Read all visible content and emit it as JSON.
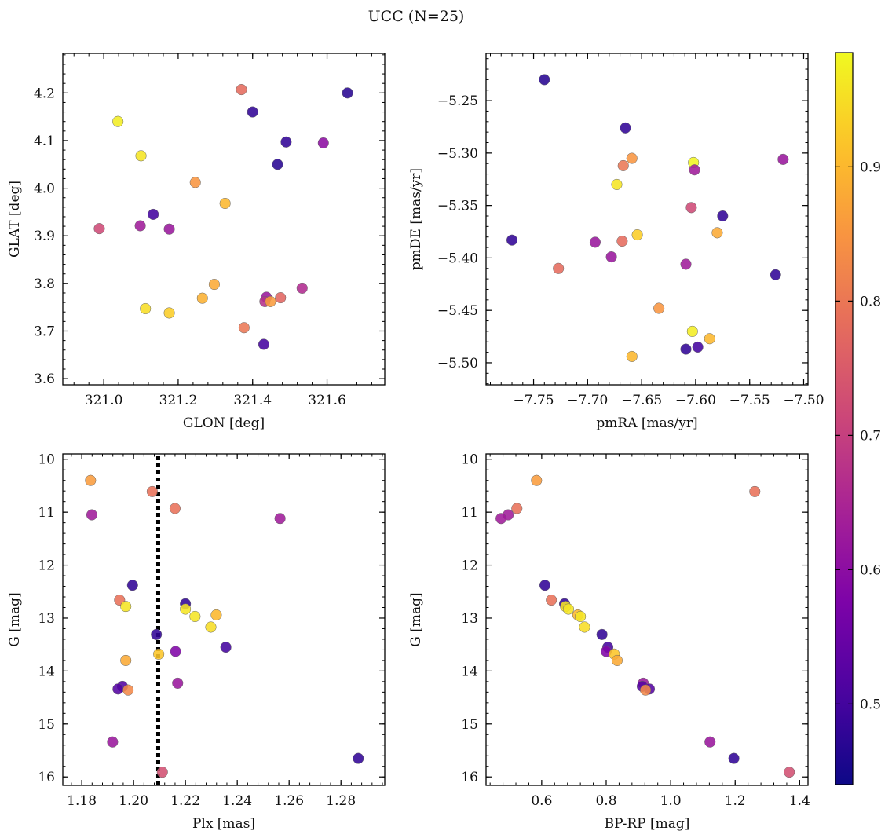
{
  "title": "UCC (N=25)",
  "colorbar": {
    "range": [
      0.44,
      0.985
    ],
    "ticks": [
      0.5,
      0.6,
      0.7,
      0.8,
      0.9
    ],
    "tick_labels": [
      "0.5",
      "0.6",
      "0.7",
      "0.8",
      "0.9"
    ],
    "colormap": "plasma"
  },
  "chart_data": [
    {
      "type": "scatter",
      "xlabel": "GLON [deg]",
      "ylabel": "GLAT [deg]",
      "xlim": [
        320.89,
        321.755
      ],
      "ylim": [
        3.587,
        4.283
      ],
      "xticks": [
        321.0,
        321.2,
        321.4,
        321.6
      ],
      "xtick_labels": [
        "321.0",
        "321.2",
        "321.4",
        "321.6"
      ],
      "yticks": [
        3.6,
        3.7,
        3.8,
        3.9,
        4.0,
        4.1,
        4.2
      ],
      "ytick_labels": [
        "3.6",
        "3.7",
        "3.8",
        "3.9",
        "4.0",
        "4.1",
        "4.2"
      ],
      "points": [
        {
          "x": 321.655,
          "y": 4.2,
          "c": 0.47
        },
        {
          "x": 321.4,
          "y": 4.16,
          "c": 0.48
        },
        {
          "x": 321.37,
          "y": 4.207,
          "c": 0.78
        },
        {
          "x": 321.038,
          "y": 4.14,
          "c": 0.97
        },
        {
          "x": 321.1,
          "y": 4.068,
          "c": 0.96
        },
        {
          "x": 321.49,
          "y": 4.097,
          "c": 0.48
        },
        {
          "x": 321.59,
          "y": 4.095,
          "c": 0.6
        },
        {
          "x": 321.467,
          "y": 4.05,
          "c": 0.47
        },
        {
          "x": 321.246,
          "y": 4.012,
          "c": 0.85
        },
        {
          "x": 321.326,
          "y": 3.968,
          "c": 0.9
        },
        {
          "x": 321.133,
          "y": 3.945,
          "c": 0.5
        },
        {
          "x": 320.988,
          "y": 3.915,
          "c": 0.72
        },
        {
          "x": 321.098,
          "y": 3.921,
          "c": 0.63
        },
        {
          "x": 321.176,
          "y": 3.914,
          "c": 0.62
        },
        {
          "x": 321.297,
          "y": 3.798,
          "c": 0.88
        },
        {
          "x": 321.533,
          "y": 3.79,
          "c": 0.66
        },
        {
          "x": 321.265,
          "y": 3.769,
          "c": 0.89
        },
        {
          "x": 321.437,
          "y": 3.771,
          "c": 0.62
        },
        {
          "x": 321.475,
          "y": 3.77,
          "c": 0.77
        },
        {
          "x": 321.433,
          "y": 3.762,
          "c": 0.67
        },
        {
          "x": 321.448,
          "y": 3.762,
          "c": 0.86
        },
        {
          "x": 321.112,
          "y": 3.747,
          "c": 0.95
        },
        {
          "x": 321.176,
          "y": 3.738,
          "c": 0.93
        },
        {
          "x": 321.377,
          "y": 3.707,
          "c": 0.8
        },
        {
          "x": 321.43,
          "y": 3.672,
          "c": 0.5
        }
      ]
    },
    {
      "type": "scatter",
      "xlabel": "pmRA [mas/yr]",
      "ylabel": "pmDE [mas/yr]",
      "xlim": [
        -7.794,
        -7.496
      ],
      "ylim": [
        -5.521,
        -5.205
      ],
      "xticks": [
        -7.75,
        -7.7,
        -7.65,
        -7.6,
        -7.55,
        -7.5
      ],
      "xtick_labels": [
        "−7.75",
        "−7.70",
        "−7.65",
        "−7.60",
        "−7.55",
        "−7.50"
      ],
      "yticks": [
        -5.5,
        -5.45,
        -5.4,
        -5.35,
        -5.3,
        -5.25
      ],
      "ytick_labels": [
        "−5.50",
        "−5.45",
        "−5.40",
        "−5.35",
        "−5.30",
        "−5.25"
      ],
      "points": [
        {
          "x": -7.74,
          "y": -5.23,
          "c": 0.47
        },
        {
          "x": -7.665,
          "y": -5.276,
          "c": 0.48
        },
        {
          "x": -7.659,
          "y": -5.305,
          "c": 0.85
        },
        {
          "x": -7.667,
          "y": -5.312,
          "c": 0.8
        },
        {
          "x": -7.602,
          "y": -5.309,
          "c": 0.98
        },
        {
          "x": -7.601,
          "y": -5.316,
          "c": 0.63
        },
        {
          "x": -7.519,
          "y": -5.306,
          "c": 0.62
        },
        {
          "x": -7.673,
          "y": -5.33,
          "c": 0.96
        },
        {
          "x": -7.604,
          "y": -5.352,
          "c": 0.72
        },
        {
          "x": -7.575,
          "y": -5.36,
          "c": 0.48
        },
        {
          "x": -7.77,
          "y": -5.383,
          "c": 0.48
        },
        {
          "x": -7.654,
          "y": -5.378,
          "c": 0.93
        },
        {
          "x": -7.58,
          "y": -5.376,
          "c": 0.88
        },
        {
          "x": -7.668,
          "y": -5.384,
          "c": 0.78
        },
        {
          "x": -7.693,
          "y": -5.385,
          "c": 0.62
        },
        {
          "x": -7.678,
          "y": -5.399,
          "c": 0.62
        },
        {
          "x": -7.609,
          "y": -5.406,
          "c": 0.63
        },
        {
          "x": -7.727,
          "y": -5.41,
          "c": 0.78
        },
        {
          "x": -7.526,
          "y": -5.416,
          "c": 0.48
        },
        {
          "x": -7.634,
          "y": -5.448,
          "c": 0.85
        },
        {
          "x": -7.603,
          "y": -5.47,
          "c": 0.97
        },
        {
          "x": -7.587,
          "y": -5.477,
          "c": 0.9
        },
        {
          "x": -7.598,
          "y": -5.485,
          "c": 0.5
        },
        {
          "x": -7.609,
          "y": -5.487,
          "c": 0.48
        },
        {
          "x": -7.659,
          "y": -5.494,
          "c": 0.9
        }
      ]
    },
    {
      "type": "scatter",
      "xlabel": "Plx [mas]",
      "ylabel": "G [mag]",
      "xlim": [
        1.1727,
        1.2969
      ],
      "ylim": [
        16.16,
        9.9
      ],
      "xticks": [
        1.18,
        1.2,
        1.22,
        1.24,
        1.26,
        1.28
      ],
      "xtick_labels": [
        "1.18",
        "1.20",
        "1.22",
        "1.24",
        "1.26",
        "1.28"
      ],
      "yticks": [
        10,
        11,
        12,
        13,
        14,
        15,
        16
      ],
      "ytick_labels": [
        "10",
        "11",
        "12",
        "13",
        "14",
        "15",
        "16"
      ],
      "vline": {
        "x": 1.2095,
        "style": "dotted"
      },
      "points": [
        {
          "x": 1.1834,
          "y": 10.4,
          "c": 0.86
        },
        {
          "x": 1.2072,
          "y": 10.61,
          "c": 0.79
        },
        {
          "x": 1.216,
          "y": 10.93,
          "c": 0.79
        },
        {
          "x": 1.1839,
          "y": 11.05,
          "c": 0.63
        },
        {
          "x": 1.2565,
          "y": 11.12,
          "c": 0.63
        },
        {
          "x": 1.1996,
          "y": 12.38,
          "c": 0.48
        },
        {
          "x": 1.1946,
          "y": 12.66,
          "c": 0.79
        },
        {
          "x": 1.22,
          "y": 12.73,
          "c": 0.48
        },
        {
          "x": 1.197,
          "y": 12.78,
          "c": 0.96
        },
        {
          "x": 1.22,
          "y": 12.83,
          "c": 0.96
        },
        {
          "x": 1.2319,
          "y": 12.94,
          "c": 0.9
        },
        {
          "x": 1.2237,
          "y": 12.97,
          "c": 0.96
        },
        {
          "x": 1.2298,
          "y": 13.17,
          "c": 0.95
        },
        {
          "x": 1.2088,
          "y": 13.31,
          "c": 0.48
        },
        {
          "x": 1.2356,
          "y": 13.55,
          "c": 0.5
        },
        {
          "x": 1.2162,
          "y": 13.63,
          "c": 0.58
        },
        {
          "x": 1.2097,
          "y": 13.68,
          "c": 0.92
        },
        {
          "x": 1.197,
          "y": 13.8,
          "c": 0.88
        },
        {
          "x": 1.217,
          "y": 14.23,
          "c": 0.62
        },
        {
          "x": 1.1957,
          "y": 14.29,
          "c": 0.52
        },
        {
          "x": 1.194,
          "y": 14.34,
          "c": 0.52
        },
        {
          "x": 1.1979,
          "y": 14.36,
          "c": 0.83
        },
        {
          "x": 1.1919,
          "y": 15.34,
          "c": 0.62
        },
        {
          "x": 1.2111,
          "y": 15.91,
          "c": 0.73
        },
        {
          "x": 1.2867,
          "y": 15.65,
          "c": 0.48
        }
      ]
    },
    {
      "type": "scatter",
      "xlabel": "BP-RP [mag]",
      "ylabel": "G [mag]",
      "xlim": [
        0.4274,
        1.4259
      ],
      "ylim": [
        16.16,
        9.9
      ],
      "xticks": [
        0.6,
        0.8,
        1.0,
        1.2,
        1.4
      ],
      "xtick_labels": [
        "0.6",
        "0.8",
        "1.0",
        "1.2",
        "1.4"
      ],
      "yticks": [
        10,
        11,
        12,
        13,
        14,
        15,
        16
      ],
      "ytick_labels": [
        "10",
        "11",
        "12",
        "13",
        "14",
        "15",
        "16"
      ],
      "points": [
        {
          "x": 0.584,
          "y": 10.4,
          "c": 0.86
        },
        {
          "x": 1.261,
          "y": 10.61,
          "c": 0.79
        },
        {
          "x": 0.523,
          "y": 10.93,
          "c": 0.79
        },
        {
          "x": 0.496,
          "y": 11.05,
          "c": 0.63
        },
        {
          "x": 0.474,
          "y": 11.12,
          "c": 0.63
        },
        {
          "x": 0.61,
          "y": 12.38,
          "c": 0.48
        },
        {
          "x": 0.63,
          "y": 12.66,
          "c": 0.79
        },
        {
          "x": 0.671,
          "y": 12.73,
          "c": 0.48
        },
        {
          "x": 0.674,
          "y": 12.78,
          "c": 0.96
        },
        {
          "x": 0.683,
          "y": 12.83,
          "c": 0.96
        },
        {
          "x": 0.712,
          "y": 12.94,
          "c": 0.9
        },
        {
          "x": 0.72,
          "y": 12.97,
          "c": 0.96
        },
        {
          "x": 0.733,
          "y": 13.17,
          "c": 0.95
        },
        {
          "x": 0.787,
          "y": 13.31,
          "c": 0.48
        },
        {
          "x": 0.805,
          "y": 13.55,
          "c": 0.5
        },
        {
          "x": 0.8,
          "y": 13.63,
          "c": 0.58
        },
        {
          "x": 0.825,
          "y": 13.68,
          "c": 0.92
        },
        {
          "x": 0.834,
          "y": 13.8,
          "c": 0.88
        },
        {
          "x": 0.915,
          "y": 14.23,
          "c": 0.62
        },
        {
          "x": 0.912,
          "y": 14.29,
          "c": 0.52
        },
        {
          "x": 0.934,
          "y": 14.34,
          "c": 0.52
        },
        {
          "x": 0.922,
          "y": 14.36,
          "c": 0.83
        },
        {
          "x": 1.122,
          "y": 15.34,
          "c": 0.62
        },
        {
          "x": 1.368,
          "y": 15.91,
          "c": 0.73
        },
        {
          "x": 1.196,
          "y": 15.65,
          "c": 0.48
        }
      ]
    }
  ]
}
